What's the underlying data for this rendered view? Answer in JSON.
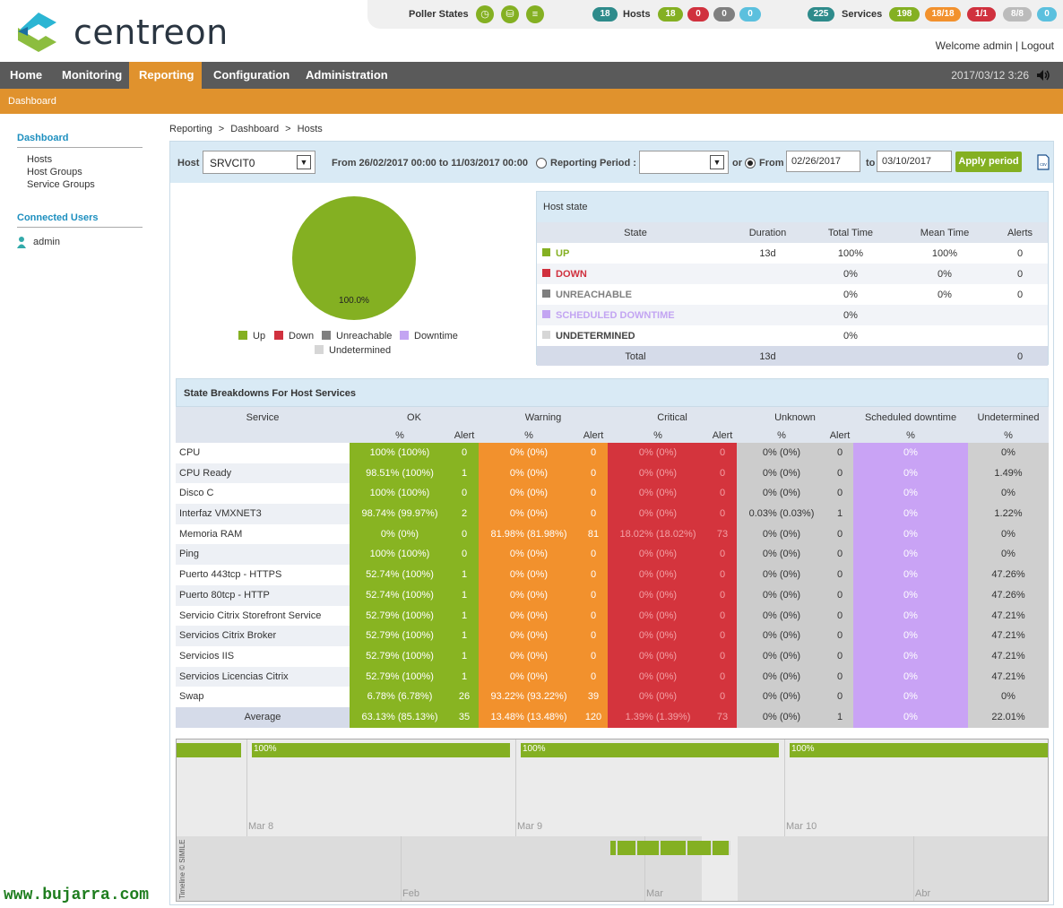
{
  "brand": {
    "name": "centreon"
  },
  "status": {
    "poller_label": "Poller States",
    "hosts_label": "Hosts",
    "hosts_total": "18",
    "hosts_counts": [
      "18",
      "0",
      "0",
      "0"
    ],
    "services_label": "Services",
    "services_total": "225",
    "services_counts": [
      "198",
      "18/18",
      "1/1",
      "8/8",
      "0"
    ]
  },
  "user": {
    "welcome": "Welcome admin",
    "separator": "|",
    "logout": "Logout"
  },
  "nav": {
    "items": [
      "Home",
      "Monitoring",
      "Reporting",
      "Configuration",
      "Administration"
    ],
    "active": "Reporting",
    "datetime": "2017/03/12 3:26"
  },
  "subnav": {
    "label": "Dashboard"
  },
  "leftmenu": {
    "section1": "Dashboard",
    "items": [
      "Hosts",
      "Host Groups",
      "Service Groups"
    ],
    "section2": "Connected Users",
    "user": "admin"
  },
  "breadcrumb": [
    "Reporting",
    ">",
    "Dashboard",
    ">",
    "Hosts"
  ],
  "filter": {
    "host_label": "Host",
    "host_value": "SRVCIT0",
    "range_text": "From 26/02/2017 00:00 to 11/03/2017 00:00",
    "period_label": "Reporting Period :",
    "period_value": "",
    "or_label": "or",
    "from_label": "From",
    "from_value": "02/26/2017",
    "to_label": "to",
    "to_value": "03/10/2017",
    "apply_label": "Apply period",
    "csv_label": "csv"
  },
  "pie": {
    "label": "100.0%",
    "up_fraction": 1.0
  },
  "legend": [
    "Up",
    "Down",
    "Unreachable",
    "Downtime",
    "Undetermined"
  ],
  "colors": {
    "up": "#84b022",
    "down": "#d0313e",
    "unreachable": "#7f7f7f",
    "downtime": "#c3a5f2",
    "undetermined": "#d6d6d6",
    "ok": "#88b422",
    "warning": "#f2912d",
    "critical": "#d4343d",
    "unknown": "#cccccc",
    "sched": "#c9a3f5",
    "undet": "#cfcfcf",
    "accent": "#e0922d"
  },
  "hoststate": {
    "title": "Host state",
    "headers": [
      "State",
      "Duration",
      "Total Time",
      "Mean Time",
      "Alerts"
    ],
    "rows": [
      {
        "state": "UP",
        "color": "#84b022",
        "duration": "13d",
        "total": "100%",
        "mean": "100%",
        "alerts": "0"
      },
      {
        "state": "DOWN",
        "color": "#d0313e",
        "duration": "",
        "total": "0%",
        "mean": "0%",
        "alerts": "0"
      },
      {
        "state": "UNREACHABLE",
        "color": "#7f7f7f",
        "duration": "",
        "total": "0%",
        "mean": "0%",
        "alerts": "0"
      },
      {
        "state": "SCHEDULED DOWNTIME",
        "color": "#c3a5f2",
        "duration": "",
        "total": "0%",
        "mean": "",
        "alerts": ""
      },
      {
        "state": "UNDETERMINED",
        "color": "#d6d6d6",
        "duration": "",
        "total": "0%",
        "mean": "",
        "alerts": ""
      }
    ],
    "total_label": "Total",
    "total_duration": "13d",
    "total_alerts": "0"
  },
  "breakdown": {
    "title": "State Breakdowns For Host Services",
    "groups": [
      "Service",
      "OK",
      "Warning",
      "Critical",
      "Unknown",
      "Scheduled downtime",
      "Undetermined"
    ],
    "subheaders": [
      "%",
      "Alert",
      "%",
      "Alert",
      "%",
      "Alert",
      "%",
      "Alert",
      "%",
      "%"
    ],
    "rows": [
      {
        "name": "CPU",
        "ok": "100% (100%)",
        "oka": "0",
        "warn": "0% (0%)",
        "warna": "0",
        "crit": "0% (0%)",
        "crita": "0",
        "unk": "0% (0%)",
        "unka": "0",
        "sched": "0%",
        "undet": "0%"
      },
      {
        "name": "CPU Ready",
        "ok": "98.51% (100%)",
        "oka": "1",
        "warn": "0% (0%)",
        "warna": "0",
        "crit": "0% (0%)",
        "crita": "0",
        "unk": "0% (0%)",
        "unka": "0",
        "sched": "0%",
        "undet": "1.49%"
      },
      {
        "name": "Disco C",
        "ok": "100% (100%)",
        "oka": "0",
        "warn": "0% (0%)",
        "warna": "0",
        "crit": "0% (0%)",
        "crita": "0",
        "unk": "0% (0%)",
        "unka": "0",
        "sched": "0%",
        "undet": "0%"
      },
      {
        "name": "Interfaz VMXNET3",
        "ok": "98.74% (99.97%)",
        "oka": "2",
        "warn": "0% (0%)",
        "warna": "0",
        "crit": "0% (0%)",
        "crita": "0",
        "unk": "0.03% (0.03%)",
        "unka": "1",
        "sched": "0%",
        "undet": "1.22%"
      },
      {
        "name": "Memoria RAM",
        "ok": "0% (0%)",
        "oka": "0",
        "warn": "81.98% (81.98%)",
        "warna": "81",
        "crit": "18.02% (18.02%)",
        "crita": "73",
        "unk": "0% (0%)",
        "unka": "0",
        "sched": "0%",
        "undet": "0%"
      },
      {
        "name": "Ping",
        "ok": "100% (100%)",
        "oka": "0",
        "warn": "0% (0%)",
        "warna": "0",
        "crit": "0% (0%)",
        "crita": "0",
        "unk": "0% (0%)",
        "unka": "0",
        "sched": "0%",
        "undet": "0%"
      },
      {
        "name": "Puerto 443tcp - HTTPS",
        "ok": "52.74% (100%)",
        "oka": "1",
        "warn": "0% (0%)",
        "warna": "0",
        "crit": "0% (0%)",
        "crita": "0",
        "unk": "0% (0%)",
        "unka": "0",
        "sched": "0%",
        "undet": "47.26%"
      },
      {
        "name": "Puerto 80tcp - HTTP",
        "ok": "52.74% (100%)",
        "oka": "1",
        "warn": "0% (0%)",
        "warna": "0",
        "crit": "0% (0%)",
        "crita": "0",
        "unk": "0% (0%)",
        "unka": "0",
        "sched": "0%",
        "undet": "47.26%"
      },
      {
        "name": "Servicio Citrix Storefront Service",
        "ok": "52.79% (100%)",
        "oka": "1",
        "warn": "0% (0%)",
        "warna": "0",
        "crit": "0% (0%)",
        "crita": "0",
        "unk": "0% (0%)",
        "unka": "0",
        "sched": "0%",
        "undet": "47.21%"
      },
      {
        "name": "Servicios Citrix Broker",
        "ok": "52.79% (100%)",
        "oka": "1",
        "warn": "0% (0%)",
        "warna": "0",
        "crit": "0% (0%)",
        "crita": "0",
        "unk": "0% (0%)",
        "unka": "0",
        "sched": "0%",
        "undet": "47.21%"
      },
      {
        "name": "Servicios IIS",
        "ok": "52.79% (100%)",
        "oka": "1",
        "warn": "0% (0%)",
        "warna": "0",
        "crit": "0% (0%)",
        "crita": "0",
        "unk": "0% (0%)",
        "unka": "0",
        "sched": "0%",
        "undet": "47.21%"
      },
      {
        "name": "Servicios Licencias Citrix",
        "ok": "52.79% (100%)",
        "oka": "1",
        "warn": "0% (0%)",
        "warna": "0",
        "crit": "0% (0%)",
        "crita": "0",
        "unk": "0% (0%)",
        "unka": "0",
        "sched": "0%",
        "undet": "47.21%"
      },
      {
        "name": "Swap",
        "ok": "6.78% (6.78%)",
        "oka": "26",
        "warn": "93.22% (93.22%)",
        "warna": "39",
        "crit": "0% (0%)",
        "crita": "0",
        "unk": "0% (0%)",
        "unka": "0",
        "sched": "0%",
        "undet": "0%"
      }
    ],
    "average": {
      "name": "Average",
      "ok": "63.13% (85.13%)",
      "oka": "35",
      "warn": "13.48% (13.48%)",
      "warna": "120",
      "crit": "1.39% (1.39%)",
      "crita": "73",
      "unk": "0% (0%)",
      "unka": "1",
      "sched": "0%",
      "undet": "22.01%"
    }
  },
  "timeline": {
    "bar_labels": [
      "100%",
      "100%",
      "100%"
    ],
    "days": [
      "Mar 8",
      "Mar 9",
      "Mar 10"
    ],
    "months": [
      "Feb",
      "Mar",
      "Abr"
    ],
    "credit": "Timeline © SIMILE"
  },
  "watermark": "www.bujarra.com"
}
